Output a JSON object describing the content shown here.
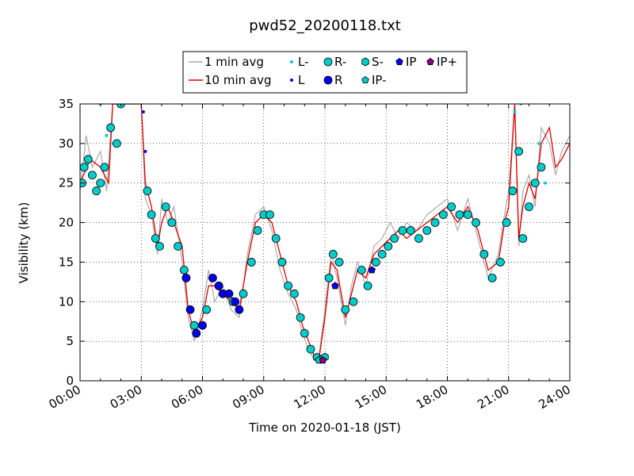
{
  "colors": {
    "avg1": "#aaaaaa",
    "avg10": "#e00000",
    "precip_light": "#00cccc",
    "precip_heavy": "#0000ee",
    "ip_plus": "#880088",
    "marker_edge": "#000000"
  },
  "chart_data": {
    "type": "scatter",
    "title": "pwd52_20200118.txt",
    "xlabel": "Time on 2020-01-18 (JST)",
    "ylabel": "Visibility (km)",
    "xlim": [
      0,
      24
    ],
    "ylim": [
      0,
      35
    ],
    "x_ticks": [
      0,
      3,
      6,
      9,
      12,
      15,
      18,
      21,
      24
    ],
    "x_tick_labels": [
      "00:00",
      "03:00",
      "06:00",
      "09:00",
      "12:00",
      "15:00",
      "18:00",
      "21:00",
      "24:00"
    ],
    "y_ticks": [
      0,
      5,
      10,
      15,
      20,
      25,
      30,
      35
    ],
    "y_tick_labels": [
      "0",
      "5",
      "10",
      "15",
      "20",
      "25",
      "30",
      "35"
    ],
    "grid": true,
    "legend_position": "top-center",
    "legend": [
      {
        "key": "avg1",
        "label": "1 min avg",
        "kind": "line",
        "color": "#aaaaaa"
      },
      {
        "key": "avg10",
        "label": "10 min avg",
        "kind": "line",
        "color": "#e00000"
      },
      {
        "key": "L-",
        "label": "L-",
        "kind": "dot-small",
        "color": "#00cccc"
      },
      {
        "key": "L",
        "label": "L",
        "kind": "dot-small",
        "color": "#0000ee"
      },
      {
        "key": "R-",
        "label": "R-",
        "kind": "circle",
        "color": "#00cccc"
      },
      {
        "key": "R",
        "label": "R",
        "kind": "circle",
        "color": "#0000ee"
      },
      {
        "key": "S-",
        "label": "S-",
        "kind": "hexagon",
        "color": "#00cccc"
      },
      {
        "key": "IP-",
        "label": "IP-",
        "kind": "pentagon",
        "color": "#00cccc"
      },
      {
        "key": "IP",
        "label": "IP",
        "kind": "pentagon",
        "color": "#0000ee"
      },
      {
        "key": "IP+",
        "label": "IP+",
        "kind": "pentagon",
        "color": "#880088"
      }
    ],
    "series": [
      {
        "name": "10 min avg",
        "x": [
          0,
          0.5,
          1.0,
          1.4,
          1.6,
          2.0,
          2.5,
          3.0,
          3.2,
          3.5,
          3.8,
          4.0,
          4.3,
          4.6,
          5.0,
          5.3,
          5.6,
          6.0,
          6.3,
          6.6,
          7.0,
          7.4,
          7.8,
          8.2,
          8.6,
          9.0,
          9.4,
          9.8,
          10.2,
          10.6,
          10.9,
          11.2,
          11.5,
          11.7,
          12.0,
          12.3,
          12.6,
          13.0,
          13.3,
          13.6,
          14.0,
          14.4,
          14.8,
          15.2,
          15.6,
          16.0,
          16.5,
          17.0,
          17.5,
          18.0,
          18.5,
          19.0,
          19.5,
          20.0,
          20.5,
          20.8,
          21.0,
          21.3,
          21.5,
          21.7,
          22.0,
          22.3,
          22.6,
          23.0,
          23.3,
          23.6,
          24.0
        ],
        "y": [
          25,
          28,
          27,
          25,
          35,
          35,
          35,
          35,
          25,
          22,
          17,
          20,
          22,
          20,
          17,
          9,
          6,
          8,
          12,
          12,
          11,
          10,
          9,
          15,
          20,
          21,
          20,
          16,
          12,
          10,
          7,
          5,
          3,
          2.6,
          8,
          15,
          14,
          8,
          11,
          14,
          13,
          16,
          17,
          18,
          19,
          18,
          19,
          20,
          21,
          22,
          20,
          22,
          19,
          14,
          15,
          20,
          22,
          35,
          18,
          22,
          25,
          23,
          30,
          32,
          27,
          28,
          30
        ]
      },
      {
        "name": "1 min avg",
        "x": [
          0,
          0.3,
          0.6,
          1.0,
          1.3,
          1.6,
          2.0,
          2.5,
          3.0,
          3.2,
          3.5,
          3.8,
          4.0,
          4.3,
          4.6,
          5.0,
          5.3,
          5.6,
          6.0,
          6.3,
          6.6,
          7.0,
          7.4,
          7.8,
          8.2,
          8.6,
          9.0,
          9.4,
          9.8,
          10.2,
          10.6,
          10.9,
          11.2,
          11.5,
          11.7,
          12.0,
          12.3,
          12.6,
          13.0,
          13.3,
          13.6,
          14.0,
          14.4,
          14.8,
          15.2,
          15.6,
          16.0,
          16.5,
          17.0,
          17.5,
          18.0,
          18.5,
          19.0,
          19.5,
          20.0,
          20.5,
          20.8,
          21.0,
          21.3,
          21.5,
          21.7,
          22.0,
          22.3,
          22.6,
          23.0,
          23.3,
          23.6,
          24.0
        ],
        "y": [
          24,
          31,
          27,
          29,
          24,
          35,
          35,
          35,
          35,
          23,
          21,
          16,
          23,
          20,
          22,
          15,
          8,
          5,
          9,
          14,
          10,
          12,
          9,
          8,
          16,
          21,
          22,
          19,
          14,
          11,
          9,
          6,
          4,
          2.5,
          3,
          9,
          16,
          13,
          7,
          12,
          15,
          12,
          17,
          18,
          20,
          18,
          20,
          19,
          21,
          22,
          23,
          19,
          23,
          18,
          13,
          16,
          21,
          24,
          35,
          17,
          24,
          26,
          22,
          32,
          30,
          26,
          29,
          31
        ]
      }
    ],
    "markers": [
      {
        "type": "R-",
        "x": [
          0.1,
          0.2,
          0.4,
          0.6,
          0.8,
          1.0,
          1.2,
          1.5,
          1.8,
          2.0,
          3.3,
          3.5,
          3.7,
          3.9,
          4.2,
          4.5,
          4.8,
          5.1,
          5.6,
          6.2,
          6.8,
          7.5,
          8.0,
          8.4,
          8.7,
          9.0,
          9.3,
          9.6,
          9.9,
          10.2,
          10.5,
          10.8,
          11.0,
          11.3,
          12.2,
          12.4,
          12.7,
          13.0,
          13.4,
          13.8,
          14.1,
          14.5,
          14.8,
          15.1,
          15.4,
          15.8,
          16.2,
          16.6,
          17.0,
          17.4,
          17.8,
          18.2,
          18.6,
          19.0,
          19.4,
          19.8,
          20.2,
          20.6,
          20.9,
          21.2,
          21.5,
          21.7,
          22.0,
          22.3,
          22.6
        ],
        "y": [
          25,
          27,
          28,
          26,
          24,
          25,
          27,
          32,
          30,
          35,
          24,
          21,
          18,
          17,
          22,
          20,
          17,
          14,
          7,
          9,
          12,
          10,
          11,
          15,
          19,
          21,
          21,
          18,
          15,
          12,
          11,
          8,
          6,
          4,
          13,
          16,
          15,
          9,
          10,
          14,
          12,
          15,
          16,
          17,
          18,
          19,
          19,
          18,
          19,
          20,
          21,
          22,
          21,
          21,
          20,
          16,
          13,
          15,
          20,
          24,
          29,
          18,
          22,
          25,
          27
        ]
      },
      {
        "type": "R",
        "x": [
          5.2,
          5.4,
          5.7,
          6.0,
          6.5,
          6.8,
          7.0,
          7.3,
          7.6,
          7.8
        ],
        "y": [
          13,
          9,
          6,
          7,
          13,
          12,
          11,
          11,
          10,
          9
        ]
      },
      {
        "type": "L-",
        "x": [
          1.0,
          1.3,
          21.3,
          21.6,
          22.5,
          22.8
        ],
        "y": [
          35,
          31,
          34,
          35,
          30,
          25
        ]
      },
      {
        "type": "L",
        "x": [
          3.1,
          3.2
        ],
        "y": [
          34,
          29
        ]
      },
      {
        "type": "S-",
        "x": [
          11.6,
          11.8,
          12.0
        ],
        "y": [
          3,
          2.7,
          3
        ]
      },
      {
        "type": "IP-",
        "x": [
          11.7
        ],
        "y": [
          2.6
        ]
      },
      {
        "type": "IP",
        "x": [
          12.5,
          14.3
        ],
        "y": [
          12,
          14
        ]
      },
      {
        "type": "IP+",
        "x": [
          11.9
        ],
        "y": [
          2.6
        ]
      }
    ]
  }
}
